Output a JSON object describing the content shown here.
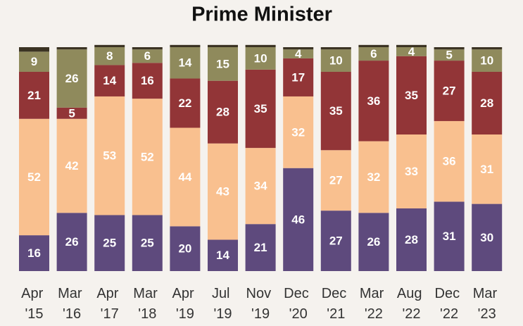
{
  "chart_data": {
    "type": "stacked_bar",
    "title": "Prime Minister",
    "categories": [
      "Apr '15",
      "Mar '16",
      "Apr '17",
      "Mar '18",
      "Apr '19",
      "Jul '19",
      "Nov '19",
      "Dec '20",
      "Dec '21",
      "Mar '22",
      "Aug '22",
      "Dec '22",
      "Mar '23"
    ],
    "ylim": [
      0,
      100
    ],
    "series": [
      {
        "color": "#5e4a7d",
        "values": [
          16,
          26,
          25,
          25,
          20,
          14,
          21,
          46,
          27,
          26,
          28,
          31,
          30
        ]
      },
      {
        "color": "#f9c08f",
        "values": [
          52,
          42,
          53,
          52,
          44,
          43,
          34,
          32,
          27,
          32,
          33,
          36,
          31
        ]
      },
      {
        "color": "#923537",
        "values": [
          21,
          5,
          14,
          16,
          22,
          28,
          35,
          17,
          35,
          36,
          35,
          27,
          28
        ]
      },
      {
        "color": "#8f8a5c",
        "values": [
          9,
          26,
          8,
          6,
          14,
          15,
          10,
          4,
          10,
          6,
          4,
          5,
          10
        ]
      },
      {
        "color": "#3b3323",
        "labels": false,
        "values": [
          2,
          1,
          1,
          1,
          1,
          1,
          1,
          1,
          1,
          1,
          1,
          1,
          1
        ]
      }
    ]
  }
}
